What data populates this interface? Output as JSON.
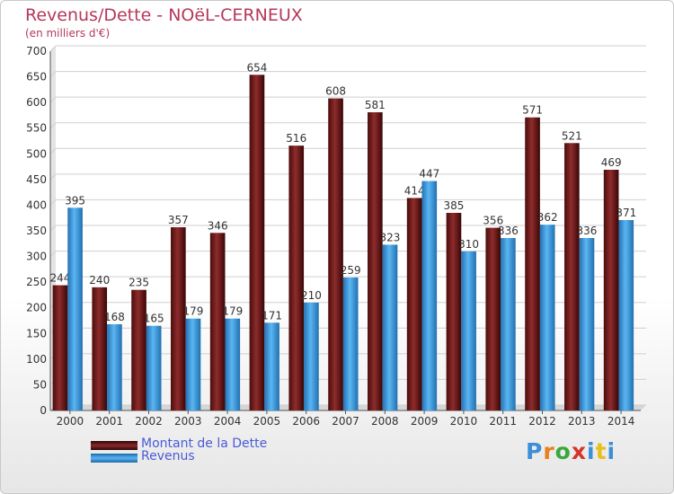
{
  "chart_data": {
    "type": "bar",
    "title": "Revenus/Dette - NOëL-CERNEUX",
    "subtitle": "(en milliers d'€)",
    "categories": [
      "2000",
      "2001",
      "2002",
      "2003",
      "2004",
      "2005",
      "2006",
      "2007",
      "2008",
      "2009",
      "2010",
      "2011",
      "2012",
      "2013",
      "2014"
    ],
    "series": [
      {
        "name": "Montant de la Dette",
        "color": "#7a1c1c",
        "values": [
          244,
          240,
          235,
          357,
          346,
          654,
          516,
          608,
          581,
          414,
          385,
          356,
          571,
          521,
          469
        ]
      },
      {
        "name": "Revenus",
        "color": "#3d9de0",
        "values": [
          395,
          168,
          165,
          179,
          179,
          171,
          210,
          259,
          323,
          447,
          310,
          336,
          362,
          336,
          371
        ]
      }
    ],
    "ylim": [
      0,
      700
    ],
    "yticks": [
      0,
      50,
      100,
      150,
      200,
      250,
      300,
      350,
      400,
      450,
      500,
      550,
      600,
      650,
      700
    ],
    "grid": true,
    "legend_position": "bottom-left"
  },
  "logo": {
    "text": "Proxiti",
    "colors": [
      "#3a8fd8",
      "#e8801c",
      "#3aa83a",
      "#d8332a",
      "#3a8fd8",
      "#e8c01c",
      "#3a8fd8"
    ]
  }
}
